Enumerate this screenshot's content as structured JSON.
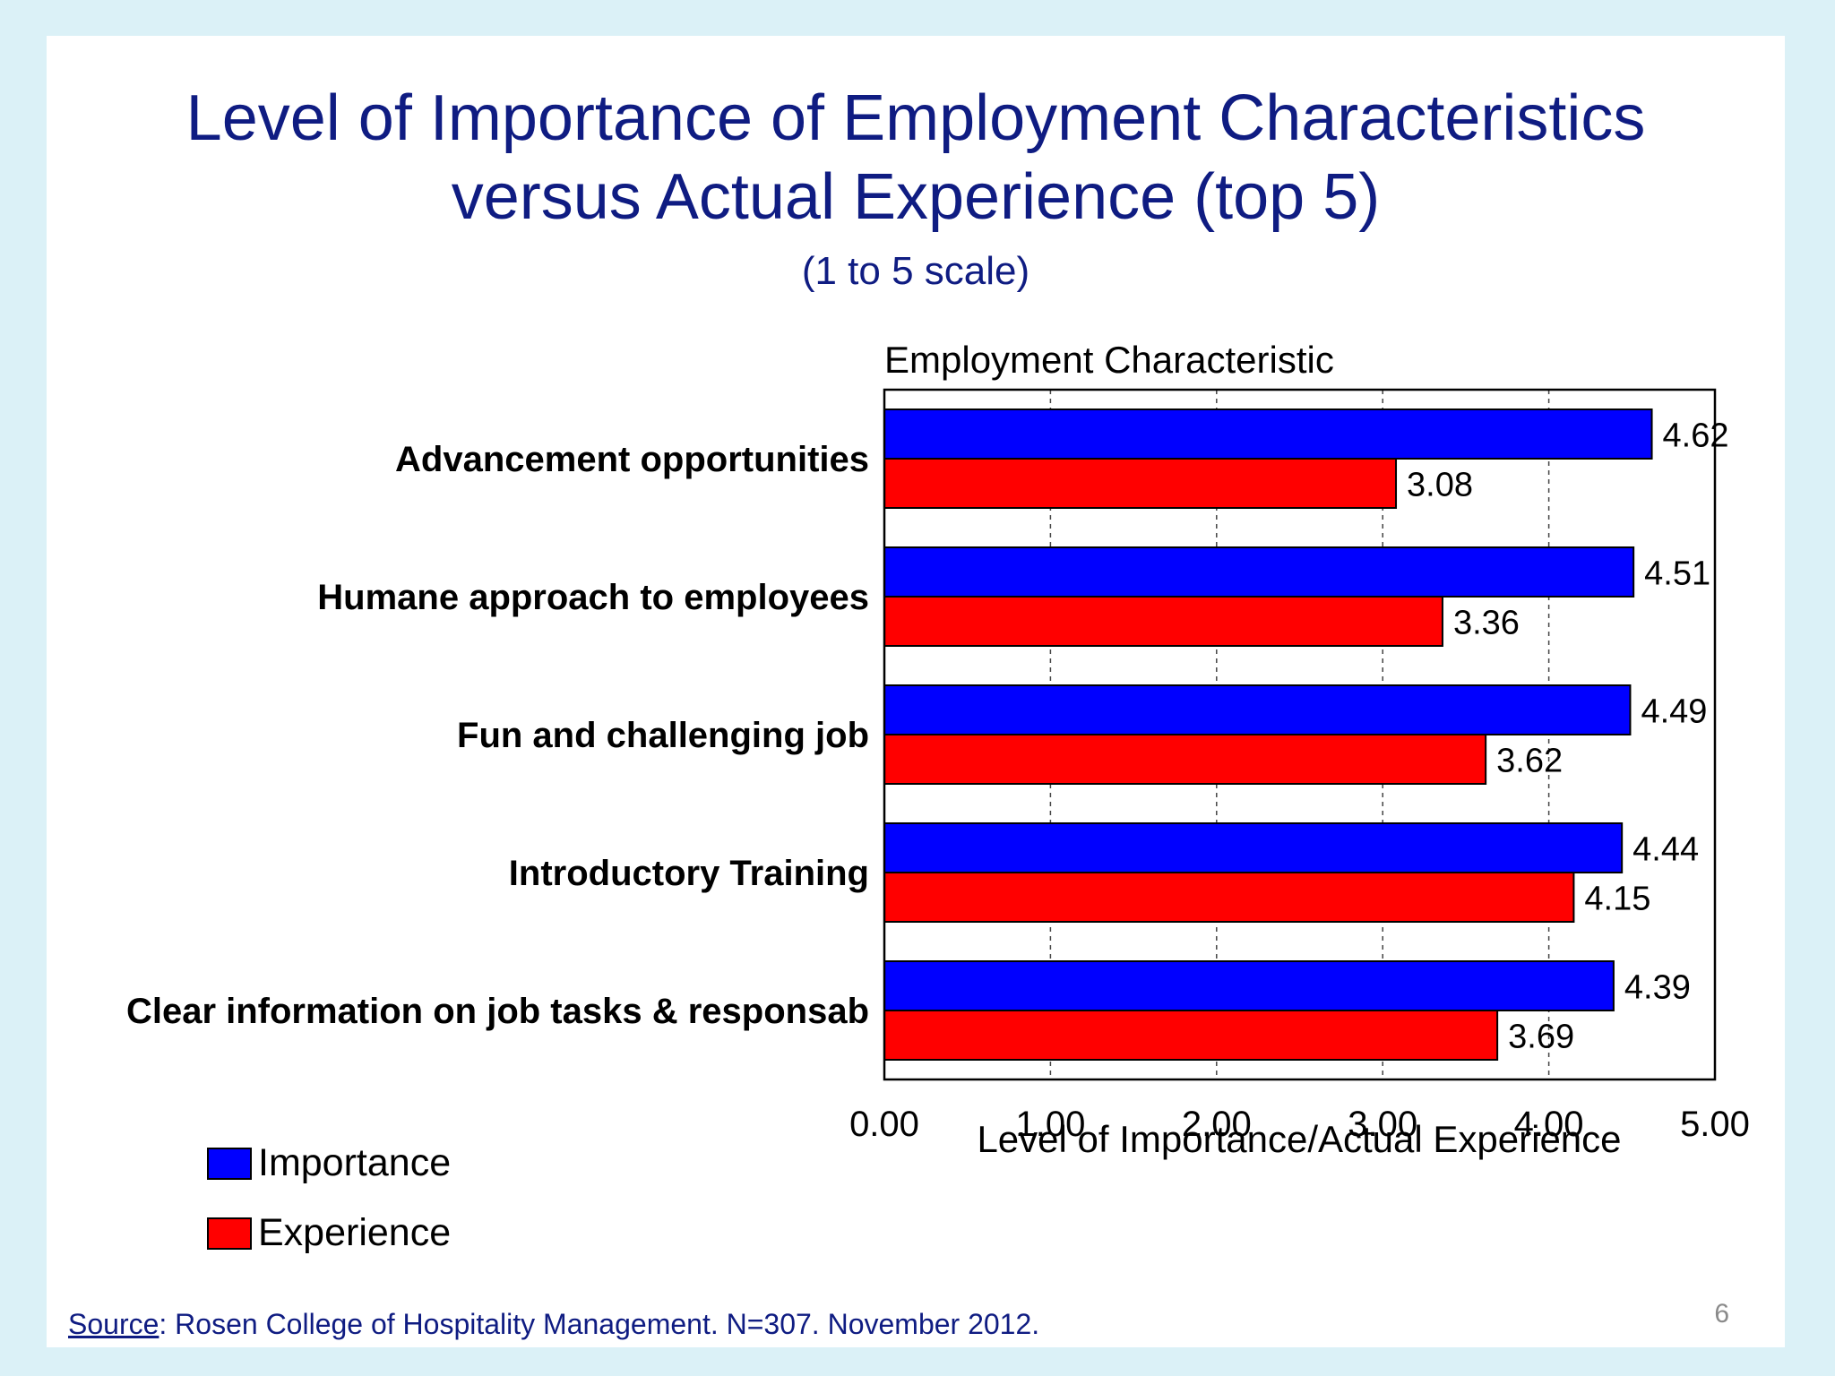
{
  "slide": {
    "title_line1": "Level of Importance of Employment Characteristics",
    "title_line2": "versus Actual Experience (top 5)",
    "subtitle": "(1 to 5 scale)",
    "source_link": "Source",
    "source_text": ":  Rosen College of Hospitality Management.  N=307.  November 2012.",
    "page_number": "6"
  },
  "chart_data": {
    "type": "bar",
    "orientation": "horizontal",
    "title": "Employment Characteristic",
    "xlabel": "Level of Importance/Actual Experience",
    "ylabel": "",
    "xlim": [
      0,
      5
    ],
    "ticks": [
      "0.00",
      "1.00",
      "2.00",
      "3.00",
      "4.00",
      "5.00"
    ],
    "tick_values": [
      0,
      1,
      2,
      3,
      4,
      5
    ],
    "grid": "vertical dashed",
    "legend_position": "bottom-left",
    "categories": [
      "Advancement opportunities",
      "Humane approach to employees",
      "Fun and challenging job",
      "Introductory Training",
      "Clear information on job tasks & responsab"
    ],
    "series": [
      {
        "name": "Importance",
        "color": "#0000ff",
        "values": [
          4.62,
          4.51,
          4.49,
          4.44,
          4.39
        ],
        "labels": [
          "4.62",
          "4.51",
          "4.49",
          "4.44",
          "4.39"
        ]
      },
      {
        "name": "Experience",
        "color": "#ff0000",
        "values": [
          3.08,
          3.36,
          3.62,
          4.15,
          3.69
        ],
        "labels": [
          "3.08",
          "3.36",
          "3.62",
          "4.15",
          "3.69"
        ]
      }
    ]
  }
}
